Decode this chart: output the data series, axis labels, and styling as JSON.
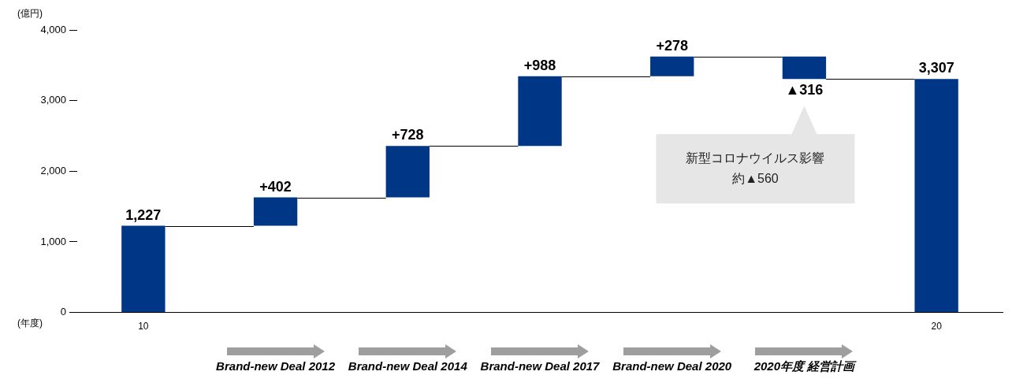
{
  "chart_data": {
    "type": "bar",
    "ylabel": "(億円)",
    "xlabel": "(年度)",
    "categories": [
      "10",
      null,
      null,
      null,
      null,
      null,
      "20"
    ],
    "values": [
      1227,
      402,
      728,
      988,
      278,
      -316,
      3307
    ],
    "base": [
      0,
      1227,
      1629,
      2357,
      3345,
      3623,
      0
    ],
    "color": "#003686",
    "value_labels": [
      "1,227",
      "+402",
      "+728",
      "+988",
      "+278",
      "▲316",
      "3,307"
    ],
    "ylim": [
      0,
      4000
    ],
    "yticks": [
      {
        "value": 0,
        "label": "0"
      },
      {
        "value": 1000,
        "label": "1,000"
      },
      {
        "value": 2000,
        "label": "2,000"
      },
      {
        "value": 3000,
        "label": "3,000"
      },
      {
        "value": 4000,
        "label": "4,000"
      }
    ],
    "grid": false,
    "legend": false,
    "annotations": [
      "Brand-new Deal 2012",
      "Brand-new Deal 2014",
      "Brand-new Deal 2017",
      "Brand-new Deal 2020",
      "2020年度 経営計画",
      "新型コロナウイルス影響",
      "約▲560"
    ]
  }
}
